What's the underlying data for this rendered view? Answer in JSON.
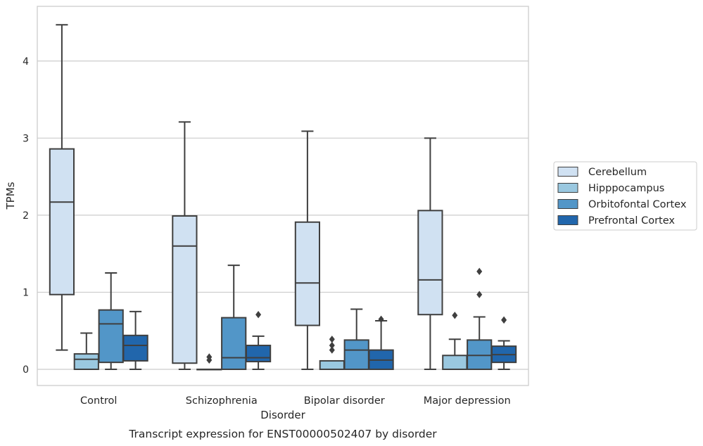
{
  "chart_data": {
    "type": "box",
    "title": "",
    "xlabel": "Disorder",
    "ylabel": "TPMs",
    "caption": "Transcript expression for ENST00000502407 by disorder",
    "categories": [
      "Control",
      "Schizophrenia",
      "Bipolar disorder",
      "Major depression"
    ],
    "ylim": [
      -0.21,
      4.71
    ],
    "yticks": [
      0,
      1,
      2,
      3,
      4
    ],
    "grid": "horizontal",
    "legend_position": "right",
    "series": [
      {
        "name": "Cerebellum",
        "color": "#d0e1f2",
        "boxes": [
          {
            "whislo": 0.25,
            "q1": 0.97,
            "med": 2.17,
            "q3": 2.86,
            "whishi": 4.47,
            "fliers": []
          },
          {
            "whislo": 0.0,
            "q1": 0.08,
            "med": 1.6,
            "q3": 1.99,
            "whishi": 3.21,
            "fliers": []
          },
          {
            "whislo": 0.0,
            "q1": 0.57,
            "med": 1.12,
            "q3": 1.91,
            "whishi": 3.09,
            "fliers": []
          },
          {
            "whislo": 0.0,
            "q1": 0.71,
            "med": 1.16,
            "q3": 2.06,
            "whishi": 3.0,
            "fliers": []
          }
        ]
      },
      {
        "name": "Hipppocampus",
        "color": "#9ac8e0",
        "boxes": [
          {
            "whislo": 0.0,
            "q1": 0.0,
            "med": 0.13,
            "q3": 0.2,
            "whishi": 0.47,
            "fliers": []
          },
          {
            "whislo": 0.0,
            "q1": 0.0,
            "med": 0.0,
            "q3": 0.0,
            "whishi": 0.0,
            "fliers": [
              0.12,
              0.16
            ]
          },
          {
            "whislo": 0.0,
            "q1": 0.0,
            "med": 0.0,
            "q3": 0.11,
            "whishi": 0.11,
            "fliers": [
              0.25,
              0.31,
              0.39
            ]
          },
          {
            "whislo": 0.0,
            "q1": 0.0,
            "med": 0.0,
            "q3": 0.18,
            "whishi": 0.39,
            "fliers": [
              0.7
            ]
          }
        ]
      },
      {
        "name": "Orbitofontal Cortex",
        "color": "#5296c8",
        "boxes": [
          {
            "whislo": 0.0,
            "q1": 0.09,
            "med": 0.59,
            "q3": 0.77,
            "whishi": 1.25,
            "fliers": []
          },
          {
            "whislo": 0.0,
            "q1": 0.0,
            "med": 0.15,
            "q3": 0.67,
            "whishi": 1.35,
            "fliers": []
          },
          {
            "whislo": 0.0,
            "q1": 0.0,
            "med": 0.25,
            "q3": 0.38,
            "whishi": 0.78,
            "fliers": []
          },
          {
            "whislo": 0.0,
            "q1": 0.0,
            "med": 0.18,
            "q3": 0.38,
            "whishi": 0.68,
            "fliers": [
              0.97,
              1.27
            ]
          }
        ]
      },
      {
        "name": "Prefrontal Cortex",
        "color": "#2166ac",
        "boxes": [
          {
            "whislo": 0.0,
            "q1": 0.11,
            "med": 0.31,
            "q3": 0.44,
            "whishi": 0.75,
            "fliers": []
          },
          {
            "whislo": 0.0,
            "q1": 0.1,
            "med": 0.15,
            "q3": 0.31,
            "whishi": 0.43,
            "fliers": [
              0.71
            ]
          },
          {
            "whislo": 0.0,
            "q1": 0.0,
            "med": 0.12,
            "q3": 0.25,
            "whishi": 0.63,
            "fliers": [
              0.65
            ]
          },
          {
            "whislo": 0.0,
            "q1": 0.09,
            "med": 0.19,
            "q3": 0.3,
            "whishi": 0.37,
            "fliers": [
              0.64
            ]
          }
        ]
      }
    ]
  }
}
